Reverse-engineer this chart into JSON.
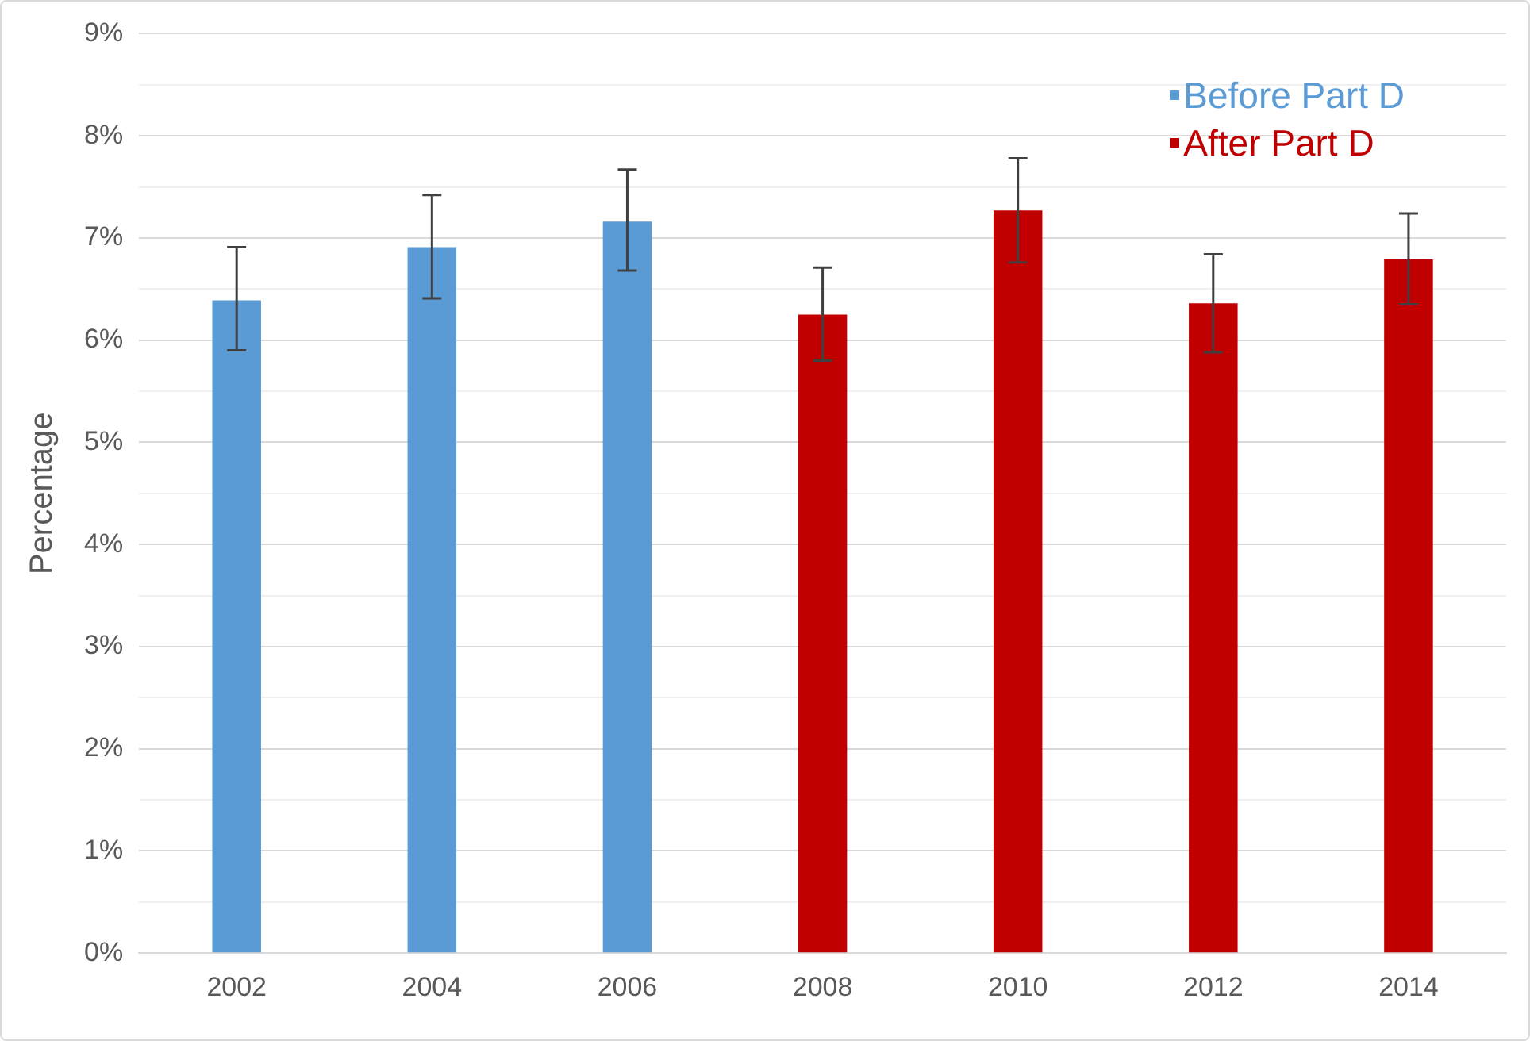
{
  "chart_data": {
    "type": "bar",
    "ylabel": "Percentage",
    "categories": [
      "2002",
      "2004",
      "2006",
      "2008",
      "2010",
      "2012",
      "2014"
    ],
    "series": [
      {
        "name": "Before Part D",
        "color": "#5b9bd5",
        "values": [
          6.39,
          6.91,
          7.16,
          null,
          null,
          null,
          null
        ],
        "errors": [
          [
            5.9,
            6.91
          ],
          [
            6.41,
            7.42
          ],
          [
            6.68,
            7.67
          ],
          null,
          null,
          null,
          null
        ]
      },
      {
        "name": "After Part D",
        "color": "#c00000",
        "values": [
          null,
          null,
          null,
          6.25,
          7.27,
          6.36,
          6.79
        ],
        "errors": [
          null,
          null,
          null,
          [
            5.8,
            6.71
          ],
          [
            6.76,
            7.78
          ],
          [
            5.88,
            6.84
          ],
          [
            6.35,
            7.24
          ]
        ]
      }
    ],
    "ylim": [
      0,
      9
    ],
    "yticks": [
      {
        "value": 0,
        "label": "0%"
      },
      {
        "value": 0.5,
        "label": null
      },
      {
        "value": 1,
        "label": "1%"
      },
      {
        "value": 1.5,
        "label": null
      },
      {
        "value": 2,
        "label": "2%"
      },
      {
        "value": 2.5,
        "label": null
      },
      {
        "value": 3,
        "label": "3%"
      },
      {
        "value": 3.5,
        "label": null
      },
      {
        "value": 4,
        "label": "4%"
      },
      {
        "value": 4.5,
        "label": null
      },
      {
        "value": 5,
        "label": "5%"
      },
      {
        "value": 5.5,
        "label": null
      },
      {
        "value": 6,
        "label": "6%"
      },
      {
        "value": 6.5,
        "label": null
      },
      {
        "value": 7,
        "label": "7%"
      },
      {
        "value": 7.5,
        "label": null
      },
      {
        "value": 8,
        "label": "8%"
      },
      {
        "value": 8.5,
        "label": null
      },
      {
        "value": 9,
        "label": "9%"
      }
    ],
    "grid": "y",
    "legend": "top right"
  }
}
